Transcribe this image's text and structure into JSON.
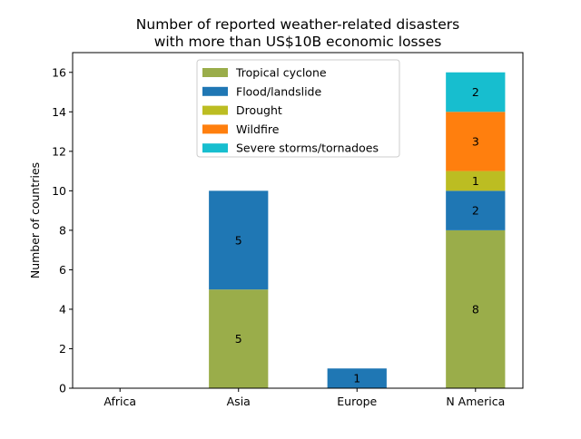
{
  "chart_data": {
    "type": "bar",
    "stacked": true,
    "title": [
      "Number of reported weather-related disasters",
      "with more than US$10B economic losses"
    ],
    "xlabel": "",
    "ylabel": "Number of countries",
    "ylim": [
      0,
      17
    ],
    "yticks": [
      0,
      2,
      4,
      6,
      8,
      10,
      12,
      14,
      16
    ],
    "categories": [
      "Africa",
      "Asia",
      "Europe",
      "N America"
    ],
    "series": [
      {
        "name": "Tropical cyclone",
        "color": "#9aad4a",
        "values": [
          0,
          5,
          0,
          8
        ]
      },
      {
        "name": "Flood/landslide",
        "color": "#1f77b4",
        "values": [
          0,
          5,
          1,
          2
        ]
      },
      {
        "name": "Drought",
        "color": "#bcbd22",
        "values": [
          0,
          0,
          0,
          1
        ]
      },
      {
        "name": "Wildfire",
        "color": "#ff7f0e",
        "values": [
          0,
          0,
          0,
          3
        ]
      },
      {
        "name": "Severe storms/tornadoes",
        "color": "#17becf",
        "values": [
          0,
          0,
          0,
          2
        ]
      }
    ],
    "data_labels": true,
    "grid": false,
    "legend_position": "top-center"
  }
}
